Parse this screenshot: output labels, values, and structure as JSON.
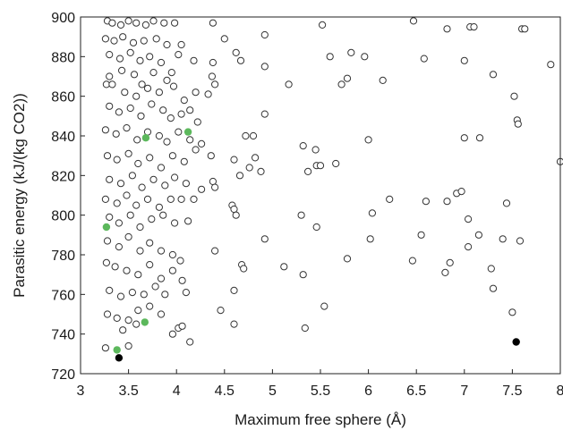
{
  "chart_data": {
    "type": "scatter",
    "xlabel": "Maximum free sphere (Å)",
    "ylabel": "Parasitic energy (kJ/(kg CO2))",
    "xlim": [
      3,
      8
    ],
    "ylim": [
      720,
      900
    ],
    "xticks": [
      "3",
      "3.5",
      "4",
      "4.5",
      "5",
      "5.5",
      "6",
      "6.5",
      "7",
      "7.5",
      "8"
    ],
    "yticks": [
      "720",
      "740",
      "760",
      "780",
      "800",
      "820",
      "840",
      "860",
      "880",
      "900"
    ],
    "grid": false,
    "colors": {
      "open_edge": "#333333",
      "green": "#5cb85c",
      "black": "#000000"
    },
    "series": [
      {
        "marker": "open-circle",
        "points": [
          [
            3.28,
            898
          ],
          [
            3.33,
            897
          ],
          [
            3.42,
            896
          ],
          [
            3.5,
            898
          ],
          [
            3.58,
            897
          ],
          [
            3.68,
            896
          ],
          [
            3.76,
            898
          ],
          [
            3.87,
            897
          ],
          [
            3.98,
            897
          ],
          [
            4.38,
            897
          ],
          [
            4.92,
            891
          ],
          [
            5.52,
            896
          ],
          [
            6.47,
            898
          ],
          [
            6.82,
            894
          ],
          [
            7.06,
            895
          ],
          [
            7.1,
            895
          ],
          [
            7.6,
            894
          ],
          [
            7.63,
            894
          ],
          [
            3.26,
            889
          ],
          [
            3.35,
            888
          ],
          [
            3.44,
            890
          ],
          [
            3.55,
            887
          ],
          [
            3.66,
            888
          ],
          [
            3.79,
            889
          ],
          [
            3.9,
            886
          ],
          [
            4.05,
            886
          ],
          [
            4.5,
            889
          ],
          [
            4.62,
            882
          ],
          [
            4.67,
            878
          ],
          [
            4.92,
            875
          ],
          [
            5.6,
            880
          ],
          [
            5.82,
            882
          ],
          [
            5.96,
            880
          ],
          [
            6.58,
            879
          ],
          [
            7.0,
            878
          ],
          [
            7.9,
            876
          ],
          [
            3.3,
            881
          ],
          [
            3.41,
            879
          ],
          [
            3.52,
            882
          ],
          [
            3.62,
            878
          ],
          [
            3.72,
            880
          ],
          [
            3.84,
            877
          ],
          [
            3.95,
            872
          ],
          [
            4.02,
            881
          ],
          [
            4.18,
            878
          ],
          [
            4.38,
            877
          ],
          [
            4.37,
            870
          ],
          [
            3.3,
            870
          ],
          [
            3.43,
            873
          ],
          [
            3.56,
            871
          ],
          [
            3.64,
            866
          ],
          [
            3.76,
            872
          ],
          [
            3.9,
            868
          ],
          [
            7.3,
            871
          ],
          [
            3.27,
            866
          ],
          [
            3.33,
            866
          ],
          [
            3.46,
            862
          ],
          [
            3.58,
            860
          ],
          [
            3.7,
            864
          ],
          [
            3.82,
            862
          ],
          [
            3.97,
            865
          ],
          [
            4.08,
            858
          ],
          [
            4.2,
            862
          ],
          [
            4.33,
            861
          ],
          [
            4.4,
            866
          ],
          [
            5.17,
            866
          ],
          [
            5.72,
            866
          ],
          [
            5.78,
            869
          ],
          [
            6.15,
            868
          ],
          [
            7.52,
            860
          ],
          [
            3.3,
            855
          ],
          [
            3.4,
            852
          ],
          [
            3.52,
            854
          ],
          [
            3.63,
            850
          ],
          [
            3.74,
            856
          ],
          [
            3.86,
            853
          ],
          [
            3.94,
            849
          ],
          [
            4.05,
            851
          ],
          [
            4.14,
            853
          ],
          [
            4.22,
            847
          ],
          [
            4.92,
            851
          ],
          [
            7.55,
            848
          ],
          [
            7.56,
            846
          ],
          [
            3.26,
            843
          ],
          [
            3.37,
            841
          ],
          [
            3.48,
            844
          ],
          [
            3.59,
            838
          ],
          [
            3.7,
            842
          ],
          [
            3.82,
            840
          ],
          [
            3.9,
            837
          ],
          [
            4.02,
            842
          ],
          [
            4.14,
            838
          ],
          [
            4.26,
            836
          ],
          [
            4.72,
            840
          ],
          [
            4.8,
            840
          ],
          [
            5.32,
            835
          ],
          [
            5.45,
            833
          ],
          [
            6.0,
            838
          ],
          [
            7.0,
            839
          ],
          [
            7.16,
            839
          ],
          [
            3.28,
            830
          ],
          [
            3.38,
            828
          ],
          [
            3.5,
            831
          ],
          [
            3.6,
            826
          ],
          [
            3.72,
            829
          ],
          [
            3.84,
            824
          ],
          [
            3.96,
            830
          ],
          [
            4.08,
            827
          ],
          [
            4.2,
            833
          ],
          [
            4.36,
            830
          ],
          [
            4.6,
            828
          ],
          [
            4.82,
            829
          ],
          [
            4.88,
            822
          ],
          [
            4.76,
            824
          ],
          [
            5.46,
            825
          ],
          [
            5.5,
            825
          ],
          [
            5.66,
            826
          ],
          [
            8.0,
            827
          ],
          [
            3.3,
            818
          ],
          [
            3.42,
            816
          ],
          [
            3.54,
            820
          ],
          [
            3.64,
            814
          ],
          [
            3.76,
            818
          ],
          [
            3.88,
            815
          ],
          [
            3.98,
            819
          ],
          [
            4.1,
            816
          ],
          [
            4.26,
            813
          ],
          [
            4.38,
            817
          ],
          [
            4.4,
            814
          ],
          [
            4.66,
            820
          ],
          [
            5.37,
            822
          ],
          [
            3.26,
            808
          ],
          [
            3.38,
            806
          ],
          [
            3.48,
            810
          ],
          [
            3.58,
            805
          ],
          [
            3.7,
            808
          ],
          [
            3.82,
            804
          ],
          [
            3.94,
            808
          ],
          [
            4.05,
            808
          ],
          [
            4.18,
            808
          ],
          [
            4.58,
            805
          ],
          [
            4.6,
            803
          ],
          [
            6.22,
            808
          ],
          [
            6.6,
            807
          ],
          [
            6.82,
            807
          ],
          [
            6.92,
            811
          ],
          [
            6.97,
            812
          ],
          [
            7.44,
            806
          ],
          [
            3.3,
            799
          ],
          [
            3.4,
            796
          ],
          [
            3.52,
            800
          ],
          [
            3.62,
            794
          ],
          [
            3.74,
            798
          ],
          [
            3.86,
            800
          ],
          [
            3.98,
            796
          ],
          [
            4.12,
            797
          ],
          [
            4.62,
            800
          ],
          [
            5.3,
            800
          ],
          [
            5.46,
            794
          ],
          [
            6.04,
            801
          ],
          [
            7.04,
            798
          ],
          [
            3.28,
            787
          ],
          [
            3.4,
            784
          ],
          [
            3.5,
            789
          ],
          [
            3.62,
            782
          ],
          [
            3.72,
            786
          ],
          [
            3.84,
            782
          ],
          [
            3.96,
            780
          ],
          [
            4.04,
            777
          ],
          [
            4.4,
            782
          ],
          [
            4.92,
            788
          ],
          [
            5.78,
            778
          ],
          [
            6.02,
            788
          ],
          [
            6.55,
            790
          ],
          [
            7.04,
            784
          ],
          [
            7.15,
            790
          ],
          [
            7.4,
            788
          ],
          [
            7.58,
            787
          ],
          [
            3.27,
            776
          ],
          [
            3.36,
            774
          ],
          [
            3.48,
            772
          ],
          [
            3.6,
            770
          ],
          [
            3.72,
            775
          ],
          [
            3.84,
            768
          ],
          [
            3.96,
            772
          ],
          [
            4.06,
            767
          ],
          [
            4.68,
            775
          ],
          [
            4.7,
            773
          ],
          [
            5.12,
            774
          ],
          [
            5.32,
            770
          ],
          [
            6.46,
            777
          ],
          [
            6.85,
            776
          ],
          [
            6.8,
            771
          ],
          [
            7.28,
            773
          ],
          [
            3.3,
            762
          ],
          [
            3.42,
            759
          ],
          [
            3.54,
            761
          ],
          [
            3.66,
            760
          ],
          [
            3.78,
            764
          ],
          [
            3.88,
            760
          ],
          [
            4.1,
            761
          ],
          [
            4.6,
            762
          ],
          [
            7.3,
            763
          ],
          [
            3.28,
            750
          ],
          [
            3.38,
            748
          ],
          [
            3.5,
            747
          ],
          [
            3.6,
            752
          ],
          [
            3.72,
            754
          ],
          [
            3.84,
            750
          ],
          [
            4.02,
            743
          ],
          [
            4.14,
            736
          ],
          [
            4.46,
            752
          ],
          [
            4.6,
            745
          ],
          [
            5.34,
            743
          ],
          [
            5.54,
            754
          ],
          [
            7.5,
            751
          ],
          [
            3.26,
            733
          ],
          [
            3.44,
            742
          ],
          [
            3.5,
            734
          ],
          [
            3.58,
            745
          ],
          [
            3.96,
            740
          ],
          [
            4.06,
            744
          ]
        ]
      },
      {
        "marker": "filled-green",
        "points": [
          [
            3.27,
            794
          ],
          [
            3.38,
            732
          ],
          [
            3.67,
            746
          ],
          [
            3.68,
            839
          ],
          [
            4.12,
            842
          ]
        ]
      },
      {
        "marker": "filled-black",
        "points": [
          [
            3.4,
            728
          ],
          [
            7.54,
            736
          ]
        ]
      }
    ]
  }
}
